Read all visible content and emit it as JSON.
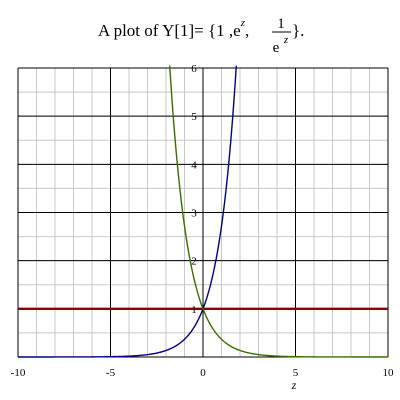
{
  "title": {
    "prefix": "A plot of Y[1]= {1 ,e",
    "exp_sup": "z",
    "comma": ",",
    "frac_num": "1",
    "frac_den": "e",
    "frac_den_sup": "z",
    "suffix": "}."
  },
  "chart_data": {
    "type": "line",
    "title": "A plot of Y[1]= {1 ,e^z, 1/e^z}.",
    "xlabel": "z",
    "ylabel": "",
    "xlim": [
      -10,
      10
    ],
    "ylim": [
      0,
      6
    ],
    "x_ticks": [
      -10,
      -5,
      0,
      5,
      10
    ],
    "x_tick_labels": [
      "-10",
      "-5",
      "0",
      "5",
      "10"
    ],
    "y_ticks": [
      1,
      2,
      3,
      4,
      5,
      6
    ],
    "y_tick_labels": [
      "1",
      "2",
      "3",
      "4",
      "5",
      "6"
    ],
    "grid": true,
    "series": [
      {
        "expr": "1",
        "color": "#8b0000"
      },
      {
        "expr": "exp(z)",
        "color": "#00008b"
      },
      {
        "expr": "exp(-z)",
        "color": "#3a6e00"
      }
    ]
  }
}
